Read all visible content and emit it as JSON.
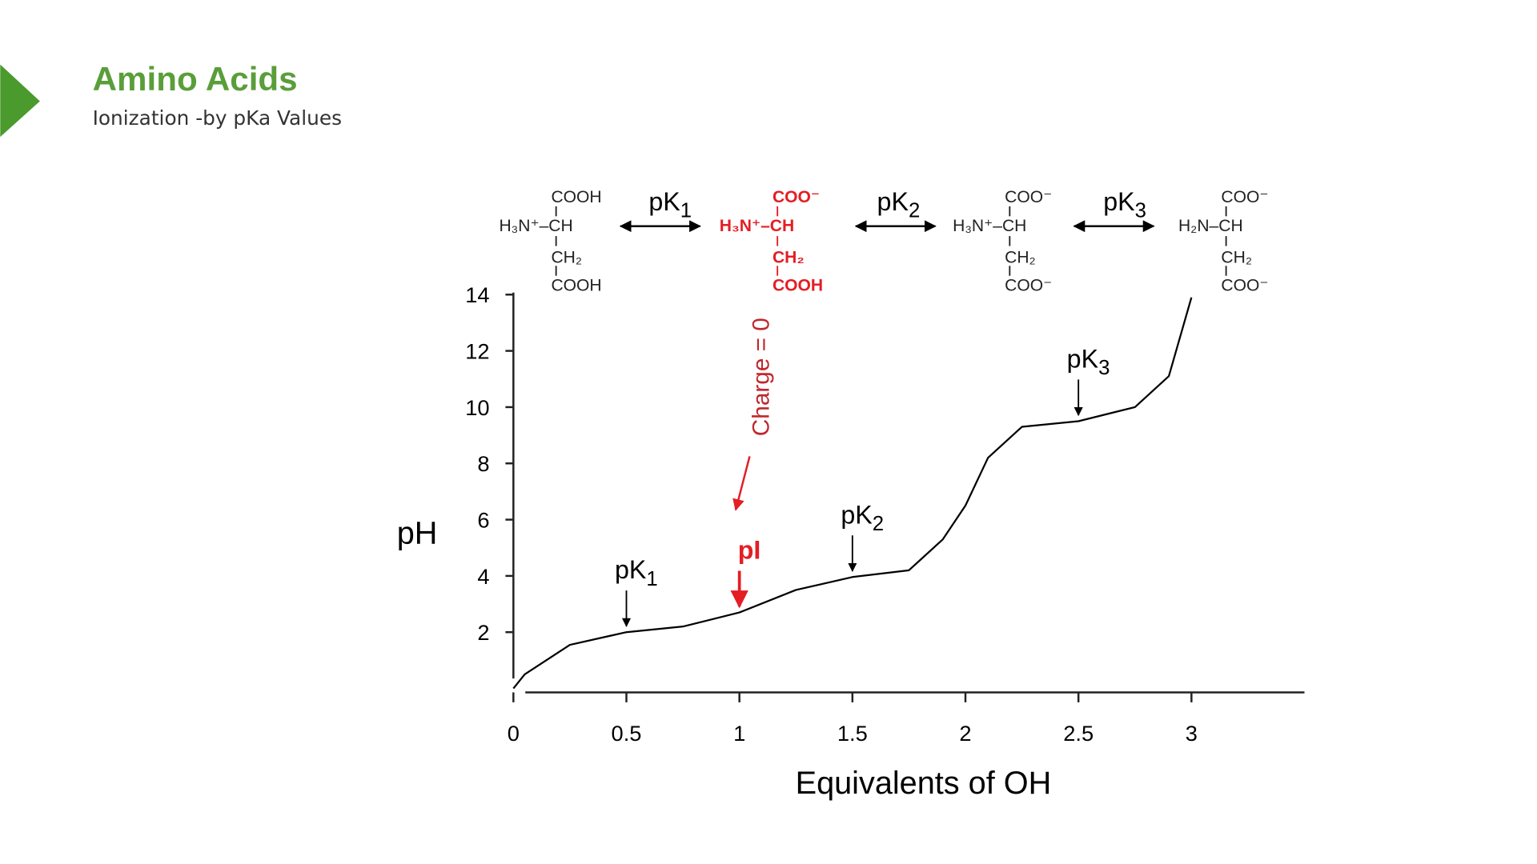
{
  "header": {
    "title": "Amino Acids",
    "subtitle": "Ionization -by pKa Values"
  },
  "equilibrium": {
    "structures": [
      {
        "top": "COOH",
        "middle": "H₃N⁺–CH",
        "side": "CH₂",
        "bottom": "COOH"
      },
      {
        "top": "COO⁻",
        "middle": "H₃N⁺–CH",
        "side": "CH₂",
        "bottom": "COOH"
      },
      {
        "top": "COO⁻",
        "middle": "H₃N⁺–CH",
        "side": "CH₂",
        "bottom": "COO⁻"
      },
      {
        "top": "COO⁻",
        "middle": "H₂N–CH",
        "side": "CH₂",
        "bottom": "COO⁻"
      }
    ],
    "steps": [
      {
        "base": "pK",
        "sub": "1"
      },
      {
        "base": "pK",
        "sub": "2"
      },
      {
        "base": "pK",
        "sub": "3"
      }
    ]
  },
  "note": "Charge = 0",
  "chart_data": {
    "type": "line",
    "xlabel": "Equivalents of OH",
    "ylabel": "pH",
    "x": [
      0,
      0.05,
      0.25,
      0.5,
      0.75,
      1,
      1.25,
      1.5,
      1.75,
      1.9,
      2,
      2.1,
      2.25,
      2.5,
      2.75,
      2.9,
      3
    ],
    "series": [
      {
        "color": "#000000",
        "values": [
          0,
          0.5,
          1.55,
          2.0,
          2.2,
          2.7,
          3.5,
          3.96,
          4.2,
          5.3,
          6.5,
          8.2,
          9.3,
          9.5,
          10.0,
          11.1,
          13.9
        ]
      }
    ],
    "xlim": [
      0,
      3.5
    ],
    "ylim": [
      0,
      14
    ],
    "xticks": [
      0,
      0.5,
      1,
      1.5,
      2,
      2.5,
      3
    ],
    "yticks": [
      2,
      4,
      6,
      8,
      10,
      12,
      14
    ],
    "annotations": [
      {
        "base": "pK",
        "sub": "1",
        "x": 0.5,
        "y": 2.0,
        "color": "#000000"
      },
      {
        "base": "pI",
        "x": 1,
        "y": 2.7,
        "color": "#e31e24"
      },
      {
        "base": "pK",
        "sub": "2",
        "x": 1.5,
        "y": 3.96,
        "color": "#000000"
      },
      {
        "base": "pK",
        "sub": "3",
        "x": 2.5,
        "y": 9.5,
        "color": "#000000"
      }
    ]
  }
}
